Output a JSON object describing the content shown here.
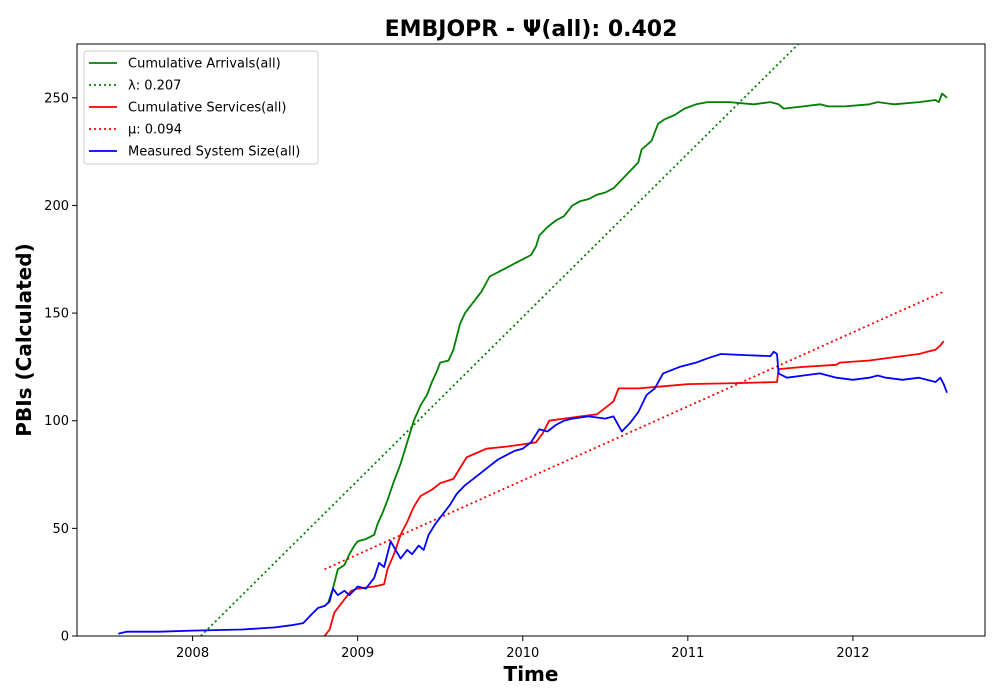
{
  "chart_data": {
    "type": "line",
    "title": "EMBJOPR -  Ψ(all): 0.402",
    "xlabel": "Time",
    "ylabel": "PBIs (Calculated)",
    "xlim": [
      2007.3,
      2012.8
    ],
    "ylim": [
      0,
      275
    ],
    "x_ticks": [
      2008,
      2009,
      2010,
      2011,
      2012
    ],
    "y_ticks": [
      0,
      50,
      100,
      150,
      200,
      250
    ],
    "grid": false,
    "legend_position": "top-left",
    "series": [
      {
        "name": "Cumulative Arrivals(all)",
        "color": "#008000",
        "style": "solid",
        "points": [
          [
            2008.82,
            15
          ],
          [
            2008.85,
            22
          ],
          [
            2008.88,
            31
          ],
          [
            2008.92,
            33
          ],
          [
            2008.95,
            38
          ],
          [
            2008.98,
            42
          ],
          [
            2009.0,
            44
          ],
          [
            2009.05,
            45
          ],
          [
            2009.1,
            47
          ],
          [
            2009.12,
            52
          ],
          [
            2009.15,
            57
          ],
          [
            2009.18,
            63
          ],
          [
            2009.22,
            72
          ],
          [
            2009.26,
            80
          ],
          [
            2009.3,
            90
          ],
          [
            2009.34,
            100
          ],
          [
            2009.38,
            107
          ],
          [
            2009.42,
            112
          ],
          [
            2009.45,
            118
          ],
          [
            2009.48,
            123
          ],
          [
            2009.5,
            127
          ],
          [
            2009.55,
            128
          ],
          [
            2009.58,
            133
          ],
          [
            2009.62,
            145
          ],
          [
            2009.65,
            150
          ],
          [
            2009.7,
            155
          ],
          [
            2009.75,
            160
          ],
          [
            2009.8,
            167
          ],
          [
            2009.85,
            169
          ],
          [
            2009.9,
            171
          ],
          [
            2009.95,
            173
          ],
          [
            2010.0,
            175
          ],
          [
            2010.05,
            177
          ],
          [
            2010.08,
            181
          ],
          [
            2010.1,
            186
          ],
          [
            2010.15,
            190
          ],
          [
            2010.2,
            193
          ],
          [
            2010.25,
            195
          ],
          [
            2010.3,
            200
          ],
          [
            2010.35,
            202
          ],
          [
            2010.4,
            203
          ],
          [
            2010.45,
            205
          ],
          [
            2010.5,
            206
          ],
          [
            2010.55,
            208
          ],
          [
            2010.6,
            212
          ],
          [
            2010.65,
            216
          ],
          [
            2010.7,
            220
          ],
          [
            2010.72,
            226
          ],
          [
            2010.78,
            230
          ],
          [
            2010.82,
            238
          ],
          [
            2010.86,
            240
          ],
          [
            2010.92,
            242
          ],
          [
            2010.98,
            245
          ],
          [
            2011.05,
            247
          ],
          [
            2011.12,
            248
          ],
          [
            2011.25,
            248
          ],
          [
            2011.4,
            247
          ],
          [
            2011.5,
            248
          ],
          [
            2011.55,
            247
          ],
          [
            2011.58,
            245
          ],
          [
            2011.7,
            246
          ],
          [
            2011.8,
            247
          ],
          [
            2011.85,
            246
          ],
          [
            2011.95,
            246
          ],
          [
            2012.1,
            247
          ],
          [
            2012.15,
            248
          ],
          [
            2012.25,
            247
          ],
          [
            2012.4,
            248
          ],
          [
            2012.5,
            249
          ],
          [
            2012.52,
            248
          ],
          [
            2012.54,
            252
          ],
          [
            2012.57,
            250
          ]
        ]
      },
      {
        "name": "λ: 0.207",
        "color": "#008000",
        "style": "dotted",
        "points": [
          [
            2008.05,
            0
          ],
          [
            2011.67,
            275
          ]
        ]
      },
      {
        "name": "Cumulative Services(all)",
        "color": "#ff0000",
        "style": "solid",
        "points": [
          [
            2008.8,
            0
          ],
          [
            2008.83,
            3
          ],
          [
            2008.86,
            11
          ],
          [
            2008.88,
            13
          ],
          [
            2008.92,
            17
          ],
          [
            2008.96,
            21
          ],
          [
            2009.0,
            22
          ],
          [
            2009.1,
            23
          ],
          [
            2009.16,
            24
          ],
          [
            2009.18,
            31
          ],
          [
            2009.22,
            38
          ],
          [
            2009.26,
            47
          ],
          [
            2009.3,
            53
          ],
          [
            2009.34,
            60
          ],
          [
            2009.38,
            65
          ],
          [
            2009.45,
            68
          ],
          [
            2009.5,
            71
          ],
          [
            2009.58,
            73
          ],
          [
            2009.62,
            78
          ],
          [
            2009.66,
            83
          ],
          [
            2009.72,
            85
          ],
          [
            2009.78,
            87
          ],
          [
            2009.9,
            88
          ],
          [
            2010.0,
            89
          ],
          [
            2010.08,
            90
          ],
          [
            2010.12,
            94
          ],
          [
            2010.16,
            100
          ],
          [
            2010.25,
            101
          ],
          [
            2010.35,
            102
          ],
          [
            2010.45,
            103
          ],
          [
            2010.5,
            106
          ],
          [
            2010.55,
            109
          ],
          [
            2010.58,
            115
          ],
          [
            2010.7,
            115
          ],
          [
            2010.85,
            116
          ],
          [
            2011.0,
            117
          ],
          [
            2011.3,
            117.5
          ],
          [
            2011.54,
            118
          ],
          [
            2011.55,
            124
          ],
          [
            2011.7,
            125
          ],
          [
            2011.9,
            126
          ],
          [
            2011.92,
            127
          ],
          [
            2012.1,
            128
          ],
          [
            2012.3,
            130
          ],
          [
            2012.4,
            131
          ],
          [
            2012.45,
            132
          ],
          [
            2012.5,
            133
          ],
          [
            2012.53,
            135
          ],
          [
            2012.55,
            137
          ]
        ]
      },
      {
        "name": "μ: 0.094",
        "color": "#ff0000",
        "style": "dotted",
        "points": [
          [
            2008.8,
            31
          ],
          [
            2012.55,
            160
          ]
        ]
      },
      {
        "name": "Measured System Size(all)",
        "color": "#0000ff",
        "style": "solid",
        "points": [
          [
            2007.55,
            1
          ],
          [
            2007.6,
            2
          ],
          [
            2007.8,
            2
          ],
          [
            2008.0,
            2.5
          ],
          [
            2008.3,
            3
          ],
          [
            2008.5,
            4
          ],
          [
            2008.6,
            5
          ],
          [
            2008.67,
            6
          ],
          [
            2008.72,
            10
          ],
          [
            2008.76,
            13
          ],
          [
            2008.8,
            14
          ],
          [
            2008.83,
            16
          ],
          [
            2008.85,
            22
          ],
          [
            2008.88,
            19
          ],
          [
            2008.92,
            21
          ],
          [
            2008.95,
            19
          ],
          [
            2009.0,
            23
          ],
          [
            2009.05,
            22
          ],
          [
            2009.1,
            27
          ],
          [
            2009.13,
            34
          ],
          [
            2009.16,
            32
          ],
          [
            2009.18,
            38
          ],
          [
            2009.2,
            44
          ],
          [
            2009.23,
            40
          ],
          [
            2009.26,
            36
          ],
          [
            2009.3,
            40
          ],
          [
            2009.33,
            38
          ],
          [
            2009.37,
            42
          ],
          [
            2009.4,
            40
          ],
          [
            2009.43,
            47
          ],
          [
            2009.47,
            52
          ],
          [
            2009.52,
            57
          ],
          [
            2009.56,
            61
          ],
          [
            2009.6,
            66
          ],
          [
            2009.65,
            70
          ],
          [
            2009.7,
            73
          ],
          [
            2009.75,
            76
          ],
          [
            2009.8,
            79
          ],
          [
            2009.85,
            82
          ],
          [
            2009.9,
            84
          ],
          [
            2009.95,
            86
          ],
          [
            2010.0,
            87
          ],
          [
            2010.05,
            90
          ],
          [
            2010.1,
            96
          ],
          [
            2010.15,
            95
          ],
          [
            2010.2,
            98
          ],
          [
            2010.25,
            100
          ],
          [
            2010.3,
            101
          ],
          [
            2010.4,
            102
          ],
          [
            2010.5,
            101
          ],
          [
            2010.55,
            102
          ],
          [
            2010.6,
            95
          ],
          [
            2010.65,
            99
          ],
          [
            2010.7,
            104
          ],
          [
            2010.75,
            112
          ],
          [
            2010.8,
            115
          ],
          [
            2010.85,
            122
          ],
          [
            2010.95,
            125
          ],
          [
            2011.05,
            127
          ],
          [
            2011.12,
            129
          ],
          [
            2011.2,
            131
          ],
          [
            2011.35,
            130.5
          ],
          [
            2011.5,
            130
          ],
          [
            2011.52,
            132
          ],
          [
            2011.54,
            131
          ],
          [
            2011.55,
            122
          ],
          [
            2011.6,
            120
          ],
          [
            2011.7,
            121
          ],
          [
            2011.8,
            122
          ],
          [
            2011.9,
            120
          ],
          [
            2012.0,
            119
          ],
          [
            2012.1,
            120
          ],
          [
            2012.15,
            121
          ],
          [
            2012.2,
            120
          ],
          [
            2012.3,
            119
          ],
          [
            2012.4,
            120
          ],
          [
            2012.5,
            118
          ],
          [
            2012.53,
            120
          ],
          [
            2012.55,
            117
          ],
          [
            2012.57,
            113
          ]
        ]
      }
    ]
  }
}
